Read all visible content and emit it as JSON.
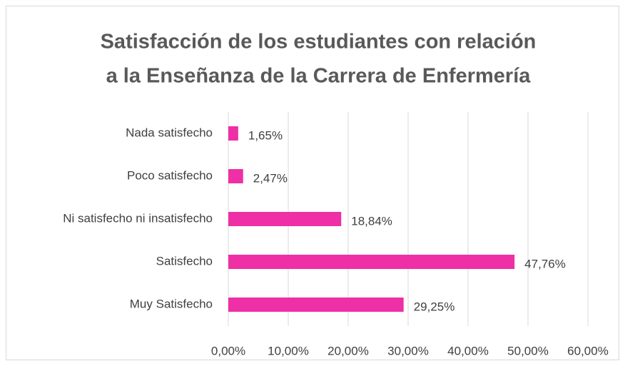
{
  "chart_data": {
    "type": "bar",
    "orientation": "horizontal",
    "title": [
      "Satisfacción de los estudiantes con relación",
      "a la Enseñanza de la Carrera de Enfermería"
    ],
    "categories": [
      "Nada satisfecho",
      "Poco satisfecho",
      "Ni satisfecho ni insatisfecho",
      "Satisfecho",
      "Muy Satisfecho"
    ],
    "values": [
      1.65,
      2.47,
      18.84,
      47.76,
      29.25
    ],
    "value_labels": [
      "1,65%",
      "2,47%",
      "18,84%",
      "47,76%",
      "29,25%"
    ],
    "color": "#ee2fa6",
    "xlim": [
      0,
      60
    ],
    "xticks": [
      {
        "value": 0,
        "label": "0,00%"
      },
      {
        "value": 10,
        "label": "10,00%"
      },
      {
        "value": 20,
        "label": "20,00%"
      },
      {
        "value": 30,
        "label": "30,00%"
      },
      {
        "value": 40,
        "label": "40,00%"
      },
      {
        "value": 50,
        "label": "50,00%"
      },
      {
        "value": 60,
        "label": "60,00%"
      }
    ],
    "grid": true
  }
}
